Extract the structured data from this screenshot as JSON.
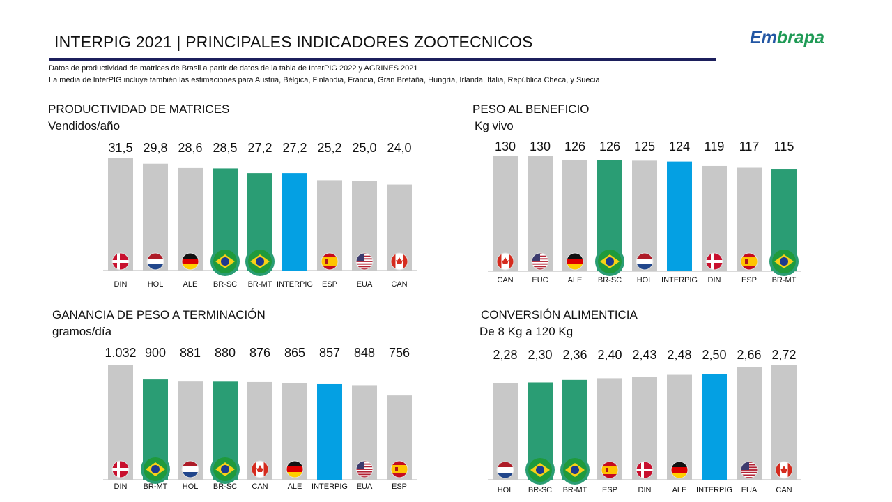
{
  "header": {
    "title": "INTERPIG 2021 | PRINCIPALES INDICADORES ZOOTECNICOS",
    "note_1": "Datos de productividad de matrices de Brasil a partir de datos de la tabla de InterPIG 2022 y AGRINES 2021",
    "note_2": "La media de InterPIG incluye también las estimaciones para Austria, Bélgica, Finlandia, Francia, Gran Bretaña, Hungría, Irlanda, Italia, República Checa, y Suecia",
    "logo_part1": "Em",
    "logo_part2": "brapa"
  },
  "colors": {
    "grey": "#c8c8c8",
    "brazil_green": "#2a9d74",
    "interpig_blue": "#04a0e3",
    "title_rule": "#1c1f5c"
  },
  "chart_data": [
    {
      "type": "bar",
      "title": "PRODUCTIVIDAD DE MATRICES",
      "subtitle": "Vendidos/año",
      "categories": [
        "DIN",
        "HOL",
        "ALE",
        "BR-SC",
        "BR-MT",
        "INTERPIG",
        "ESP",
        "EUA",
        "CAN"
      ],
      "values": [
        31.5,
        29.8,
        28.6,
        28.5,
        27.2,
        27.2,
        25.2,
        25.0,
        24.0
      ],
      "value_labels": [
        "31,5",
        "29,8",
        "28,6",
        "28,5",
        "27,2",
        "27,2",
        "25,2",
        "25,0",
        "24,0"
      ],
      "flags": [
        "denmark-flag",
        "netherlands-flag",
        "germany-flag",
        "brazil-flag",
        "brazil-flag",
        "",
        "spain-flag",
        "usa-flag",
        "canada-flag"
      ],
      "bar_colors": [
        "grey",
        "grey",
        "grey",
        "brazil_green",
        "brazil_green",
        "interpig_blue",
        "grey",
        "grey",
        "grey"
      ],
      "ylim": [
        0,
        31.5
      ]
    },
    {
      "type": "bar",
      "title": "PESO AL BENEFICIO",
      "subtitle": "Kg vivo",
      "categories": [
        "CAN",
        "EUC",
        "ALE",
        "BR-SC",
        "HOL",
        "INTERPIG",
        "DIN",
        "ESP",
        "BR-MT"
      ],
      "values": [
        130,
        130,
        126,
        126,
        125,
        124,
        119,
        117,
        115
      ],
      "value_labels": [
        "130",
        "130",
        "126",
        "126",
        "125",
        "124",
        "119",
        "117",
        "115"
      ],
      "flags": [
        "canada-flag",
        "usa-flag",
        "germany-flag",
        "brazil-flag",
        "netherlands-flag",
        "",
        "denmark-flag",
        "spain-flag",
        "brazil-flag"
      ],
      "bar_colors": [
        "grey",
        "grey",
        "grey",
        "brazil_green",
        "grey",
        "interpig_blue",
        "grey",
        "grey",
        "brazil_green"
      ],
      "ylim": [
        0,
        130
      ]
    },
    {
      "type": "bar",
      "title": "GANANCIA DE PESO A TERMINACIÓN",
      "subtitle": "gramos/día",
      "categories": [
        "DIN",
        "BR-MT",
        "HOL",
        "BR-SC",
        "CAN",
        "ALE",
        "INTERPIG",
        "EUA",
        "ESP"
      ],
      "values": [
        1032,
        900,
        881,
        880,
        876,
        865,
        857,
        848,
        756
      ],
      "value_labels": [
        "1.032",
        "900",
        "881",
        "880",
        "876",
        "865",
        "857",
        "848",
        "756"
      ],
      "flags": [
        "denmark-flag",
        "brazil-flag",
        "netherlands-flag",
        "brazil-flag",
        "canada-flag",
        "germany-flag",
        "",
        "usa-flag",
        "spain-flag"
      ],
      "bar_colors": [
        "grey",
        "brazil_green",
        "grey",
        "brazil_green",
        "grey",
        "grey",
        "interpig_blue",
        "grey",
        "grey"
      ],
      "ylim": [
        0,
        1032
      ]
    },
    {
      "type": "bar",
      "title": "CONVERSIÓN ALIMENTICIA",
      "subtitle": "De 8 Kg a 120 Kg",
      "categories": [
        "HOL",
        "BR-SC",
        "BR-MT",
        "ESP",
        "DIN",
        "ALE",
        "INTERPIG",
        "EUA",
        "CAN"
      ],
      "values": [
        2.28,
        2.3,
        2.36,
        2.4,
        2.43,
        2.48,
        2.5,
        2.66,
        2.72
      ],
      "value_labels": [
        "2,28",
        "2,30",
        "2,36",
        "2,40",
        "2,43",
        "2,48",
        "2,50",
        "2,66",
        "2,72"
      ],
      "flags": [
        "netherlands-flag",
        "brazil-flag",
        "brazil-flag",
        "spain-flag",
        "denmark-flag",
        "germany-flag",
        "",
        "usa-flag",
        "canada-flag"
      ],
      "bar_colors": [
        "grey",
        "brazil_green",
        "brazil_green",
        "grey",
        "grey",
        "grey",
        "interpig_blue",
        "grey",
        "grey"
      ],
      "ylim": [
        0,
        2.72
      ]
    }
  ]
}
